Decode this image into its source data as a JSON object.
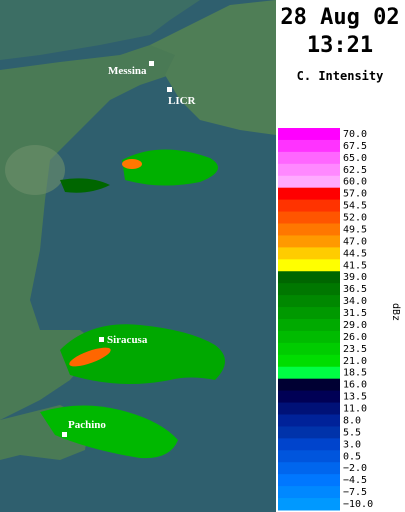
{
  "header": {
    "date": "28 Aug 02",
    "time": "13:21",
    "subtitle": "C. Intensity"
  },
  "legend": {
    "unit": "dBz",
    "entries": [
      {
        "label": "70.0",
        "color": "#ff00ff"
      },
      {
        "label": "67.5",
        "color": "#ff33ff"
      },
      {
        "label": "65.0",
        "color": "#ff66ff"
      },
      {
        "label": "62.5",
        "color": "#ff88ff"
      },
      {
        "label": "60.0",
        "color": "#ffaaff"
      },
      {
        "label": "57.0",
        "color": "#ff0000"
      },
      {
        "label": "54.5",
        "color": "#ff3300"
      },
      {
        "label": "52.0",
        "color": "#ff5500"
      },
      {
        "label": "49.5",
        "color": "#ff7700"
      },
      {
        "label": "47.0",
        "color": "#ff9900"
      },
      {
        "label": "44.5",
        "color": "#ffcc00"
      },
      {
        "label": "41.5",
        "color": "#ffff00"
      },
      {
        "label": "39.0",
        "color": "#006600"
      },
      {
        "label": "36.5",
        "color": "#007700"
      },
      {
        "label": "34.0",
        "color": "#008800"
      },
      {
        "label": "31.5",
        "color": "#009900"
      },
      {
        "label": "29.0",
        "color": "#00aa00"
      },
      {
        "label": "26.0",
        "color": "#00bb00"
      },
      {
        "label": "23.5",
        "color": "#00cc00"
      },
      {
        "label": "21.0",
        "color": "#00dd00"
      },
      {
        "label": "18.5",
        "color": "#00ff44"
      },
      {
        "label": "16.0",
        "color": "#000033"
      },
      {
        "label": "13.5",
        "color": "#000055"
      },
      {
        "label": "11.0",
        "color": "#001177"
      },
      {
        "label": "8.0",
        "color": "#002299"
      },
      {
        "label": "5.5",
        "color": "#0033aa"
      },
      {
        "label": "3.0",
        "color": "#0044cc"
      },
      {
        "label": "0.5",
        "color": "#0055dd"
      },
      {
        "label": "−2.0",
        "color": "#0066ee"
      },
      {
        "label": "−4.5",
        "color": "#0077ff"
      },
      {
        "label": "−7.5",
        "color": "#0088ff"
      },
      {
        "label": "−10.0",
        "color": "#0099ff"
      }
    ]
  },
  "map": {
    "labels": [
      "Messina",
      "LICR",
      "Siracusa",
      "Pachino"
    ]
  }
}
